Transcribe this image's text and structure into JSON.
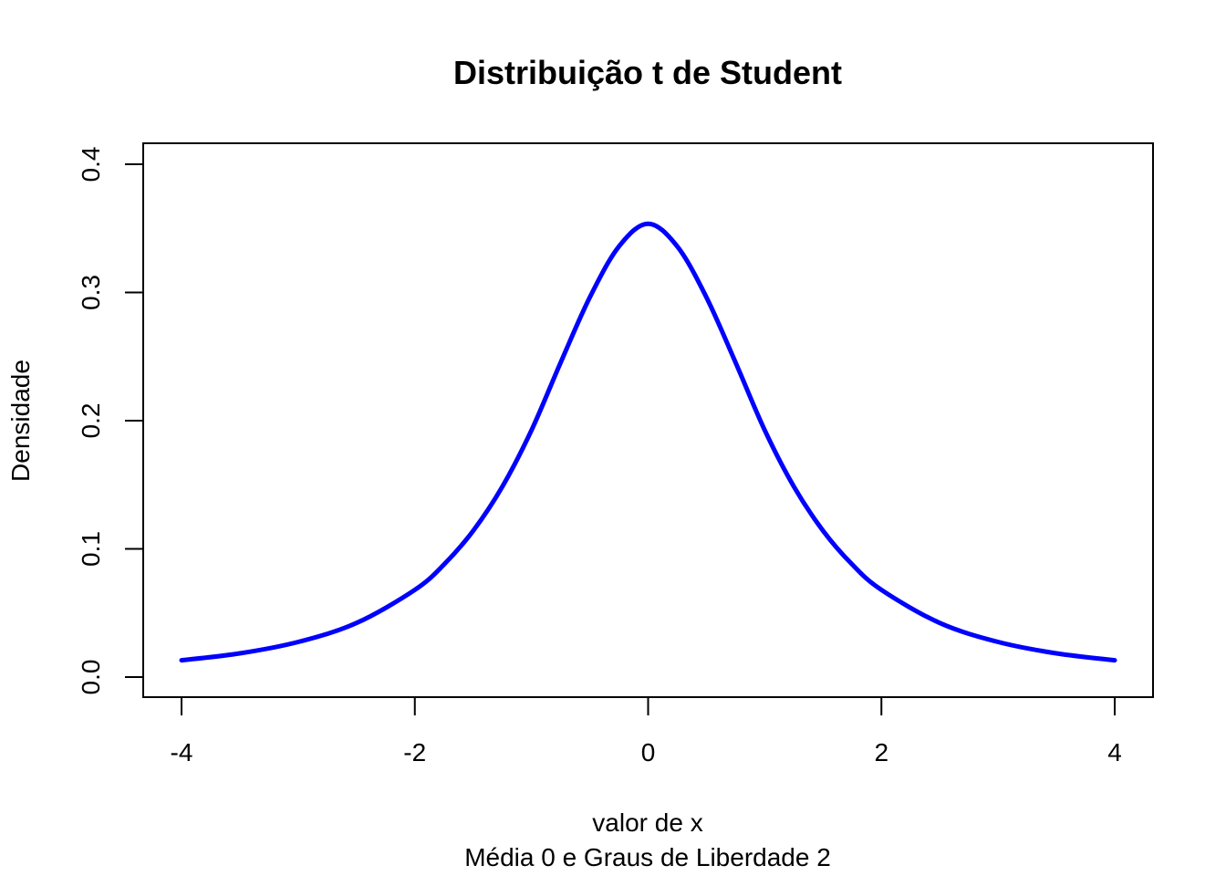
{
  "chart_data": {
    "type": "line",
    "title": "Distribuição t de Student",
    "xlabel": "valor de x",
    "sub": "Média 0 e Graus de Liberdade 2",
    "ylabel": "Densidade",
    "xlim": [
      -4,
      4
    ],
    "ylim": [
      0,
      0.4
    ],
    "x_ticks": [
      -4,
      -2,
      0,
      2,
      4
    ],
    "x_tick_labels": [
      "-4",
      "-2",
      "0",
      "2",
      "4"
    ],
    "y_ticks": [
      0.0,
      0.1,
      0.2,
      0.3,
      0.4
    ],
    "y_tick_labels": [
      "0.0",
      "0.1",
      "0.2",
      "0.3",
      "0.4"
    ],
    "grid": false,
    "series": [
      {
        "color": "#0000ff",
        "x": [
          -4,
          -3.5,
          -3,
          -2.5,
          -2,
          -1.75,
          -1.5,
          -1.25,
          -1,
          -0.75,
          -0.5,
          -0.25,
          0,
          0.25,
          0.5,
          0.75,
          1,
          1.25,
          1.5,
          1.75,
          2,
          2.5,
          3,
          3.5,
          4
        ],
        "y": [
          0.0131,
          0.0185,
          0.0274,
          0.0422,
          0.068,
          0.0878,
          0.1141,
          0.1485,
          0.1925,
          0.2453,
          0.2962,
          0.3359,
          0.3536,
          0.3359,
          0.2962,
          0.2453,
          0.1925,
          0.1485,
          0.1141,
          0.0878,
          0.068,
          0.0422,
          0.0274,
          0.0185,
          0.0131
        ]
      }
    ]
  }
}
